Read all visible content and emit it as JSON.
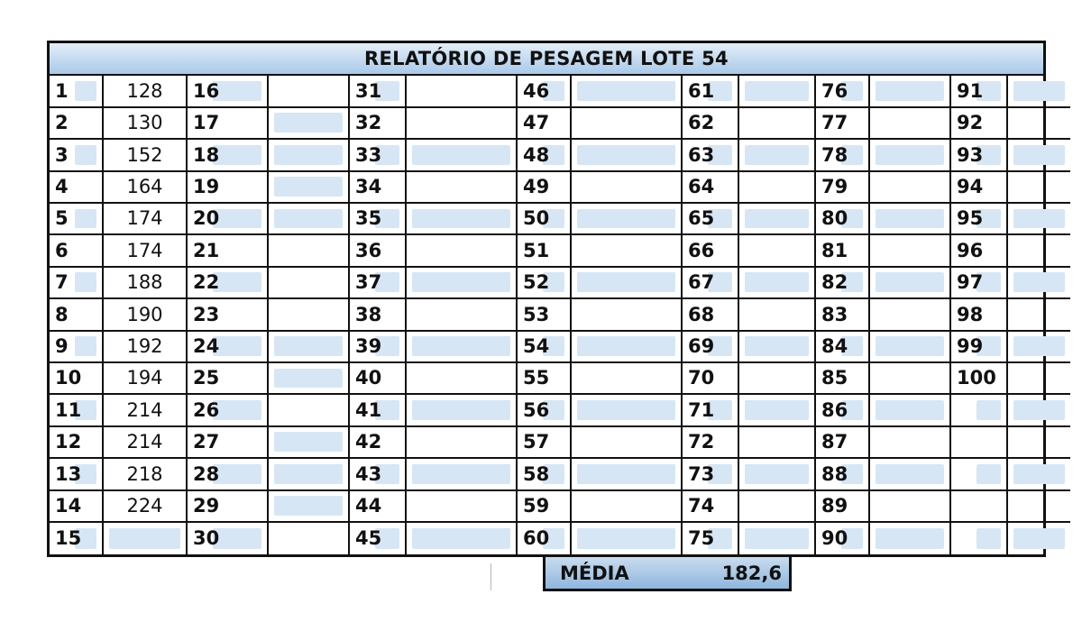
{
  "report": {
    "title": "RELATÓRIO DE PESAGEM LOTE 54",
    "weights": [
      "128",
      "130",
      "152",
      "164",
      "174",
      "174",
      "188",
      "190",
      "192",
      "194",
      "214",
      "214",
      "218",
      "224",
      ""
    ],
    "summary": {
      "label": "MÉDIA",
      "value": "182,6"
    }
  },
  "columns": [
    {
      "nums": [
        "1",
        "2",
        "3",
        "4",
        "5",
        "6",
        "7",
        "8",
        "9",
        "10",
        "11",
        "12",
        "13",
        "14",
        "15"
      ]
    },
    {
      "nums": [
        "16",
        "17",
        "18",
        "19",
        "20",
        "21",
        "22",
        "23",
        "24",
        "25",
        "26",
        "27",
        "28",
        "29",
        "30"
      ]
    },
    {
      "nums": [
        "31",
        "32",
        "33",
        "34",
        "35",
        "36",
        "37",
        "38",
        "39",
        "40",
        "41",
        "42",
        "43",
        "44",
        "45"
      ]
    },
    {
      "nums": [
        "46",
        "47",
        "48",
        "49",
        "50",
        "51",
        "52",
        "53",
        "54",
        "55",
        "56",
        "57",
        "58",
        "59",
        "60"
      ]
    },
    {
      "nums": [
        "61",
        "62",
        "63",
        "64",
        "65",
        "66",
        "67",
        "68",
        "69",
        "70",
        "71",
        "72",
        "73",
        "74",
        "75"
      ]
    },
    {
      "nums": [
        "76",
        "77",
        "78",
        "79",
        "80",
        "81",
        "82",
        "83",
        "84",
        "85",
        "86",
        "87",
        "88",
        "89",
        "90"
      ]
    },
    {
      "nums": [
        "91",
        "92",
        "93",
        "94",
        "95",
        "96",
        "97",
        "98",
        "99",
        "100",
        "",
        "",
        "",
        "",
        ""
      ]
    }
  ],
  "style": {
    "header_fill": "#a9c9e9",
    "cell_shade": "#d6e6f4",
    "border_color": "#111111"
  }
}
